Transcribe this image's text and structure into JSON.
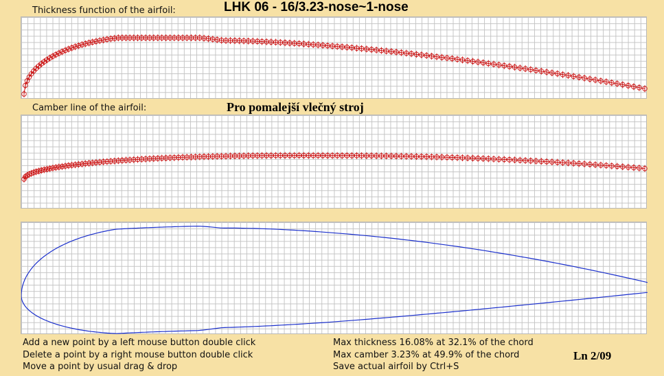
{
  "labels": {
    "thickness_label": "Thickness function of the airfoil:",
    "camber_label": "Camber line of the airfoil:",
    "title": "LHK  06  -  16/3.23-nose~1-nose",
    "subtitle": "Pro  pomalejší vlečný stroj",
    "ln": "Ln 2/09"
  },
  "instructions": [
    "Add a new point by a left mouse button double click",
    "Delete a point by a right mouse button double click",
    "Move a point by usual drag & drop"
  ],
  "stats": [
    "Max thickness 16.08% at 32.1% of the chord",
    "Max camber 3.23% at 49.9% of the chord",
    "Save actual airfoil by Ctrl+S"
  ],
  "colors": {
    "background": "#f7e1a5",
    "grid": "#c4c4c4",
    "points": "#cc1111",
    "airfoil": "#1a2fcc"
  },
  "airfoil": {
    "max_thickness_pct": 16.08,
    "max_thickness_pos_pct": 32.1,
    "max_camber_pct": 3.23,
    "max_camber_pos_pct": 49.9
  }
}
